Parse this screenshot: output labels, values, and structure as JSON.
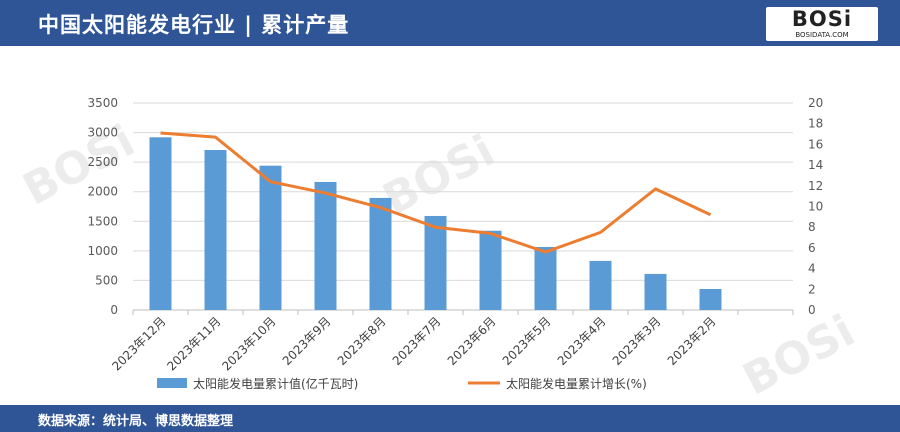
{
  "header": {
    "title": "中国太阳能发电行业 | 累计产量",
    "logo_text": "BOSi",
    "logo_sub": "BOSIDATA.COM"
  },
  "footer": {
    "source": "数据来源：统计局、博思数据整理"
  },
  "colors": {
    "header_bg": "#2f5597",
    "bar": "#5b9bd5",
    "line": "#ed7d31"
  },
  "chart_data": {
    "type": "bar+line",
    "categories": [
      "2023年12月",
      "2023年11月",
      "2023年10月",
      "2023年9月",
      "2023年8月",
      "2023年7月",
      "2023年6月",
      "2023年5月",
      "2023年4月",
      "2023年3月",
      "2023年2月"
    ],
    "series": [
      {
        "name": "太阳能发电量累计值(亿千瓦时)",
        "type": "bar",
        "axis": "left",
        "values": [
          2920,
          2705,
          2440,
          2165,
          1895,
          1590,
          1340,
          1065,
          830,
          610,
          355
        ]
      },
      {
        "name": "太阳能发电量累计增长(%)",
        "type": "line",
        "axis": "right",
        "values": [
          17.1,
          16.7,
          12.4,
          11.3,
          9.9,
          8.0,
          7.4,
          5.6,
          7.5,
          11.7,
          9.2
        ]
      }
    ],
    "y_left": {
      "range": [
        0,
        3500
      ],
      "ticks": [
        "0",
        "500",
        "1000",
        "1500",
        "2000",
        "2500",
        "3000",
        "3500"
      ]
    },
    "y_right": {
      "range": [
        0,
        20
      ],
      "ticks": [
        "0",
        "2",
        "4",
        "6",
        "8",
        "10",
        "12",
        "14",
        "16",
        "18",
        "20"
      ]
    },
    "grid": true,
    "legend": "bottom"
  }
}
